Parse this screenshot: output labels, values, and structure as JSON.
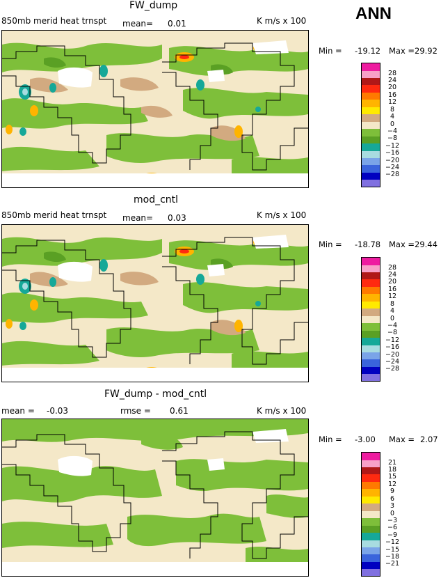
{
  "chart_data": [
    {
      "type": "heatmap",
      "title": "FW_dump",
      "subtitle_left": "850mb merid heat trnspt",
      "mean_label": "mean=",
      "mean_value": "0.01",
      "units": "K m/s x 100",
      "min_label": "Min =",
      "min_value": "-19.12",
      "max_label": "Max =",
      "max_value": "29.92",
      "colorbar_ticks": [
        "28",
        "24",
        "20",
        "16",
        "12",
        "8",
        "4",
        "0",
        "−4",
        "−8",
        "−12",
        "−16",
        "−20",
        "−24",
        "−28"
      ],
      "colorbar_range": [
        -32,
        32
      ]
    },
    {
      "type": "heatmap",
      "title": "mod_cntl",
      "subtitle_left": "850mb merid heat trnspt",
      "mean_label": "mean=",
      "mean_value": "0.03",
      "units": "K m/s x 100",
      "min_label": "Min =",
      "min_value": "-18.78",
      "max_label": "Max =",
      "max_value": "29.44",
      "colorbar_ticks": [
        "28",
        "24",
        "20",
        "16",
        "12",
        "8",
        "4",
        "0",
        "−4",
        "−8",
        "−12",
        "−16",
        "−20",
        "−24",
        "−28"
      ],
      "colorbar_range": [
        -32,
        32
      ]
    },
    {
      "type": "heatmap",
      "title": "FW_dump - mod_cntl",
      "mean_label": "mean =",
      "mean_value": "-0.03",
      "rmse_label": "rmse =",
      "rmse_value": "0.61",
      "units": "K m/s x 100",
      "min_label": "Min =",
      "min_value": "-3.00",
      "max_label": "Max =",
      "max_value": "2.07",
      "colorbar_ticks": [
        "21",
        "18",
        "15",
        "12",
        "9",
        "6",
        "3",
        "0",
        "−3",
        "−6",
        "−9",
        "−12",
        "−15",
        "−18",
        "−21"
      ],
      "colorbar_range": [
        -24,
        24
      ]
    }
  ],
  "header": {
    "period": "ANN"
  },
  "colors": {
    "scale": [
      "#ee1ca0",
      "#f8a0c8",
      "#b01818",
      "#ff2a10",
      "#ff7a00",
      "#ffb400",
      "#ffea00",
      "#d2aa80",
      "#f4e8c8",
      "#7ebf3a",
      "#5aa024",
      "#16a898",
      "#a8dce0",
      "#7aa4e8",
      "#3a64dc",
      "#0000c0",
      "#8070e0"
    ],
    "land_outline": "#000000",
    "background": "#f4e8c8",
    "missing": "#ffffff"
  }
}
